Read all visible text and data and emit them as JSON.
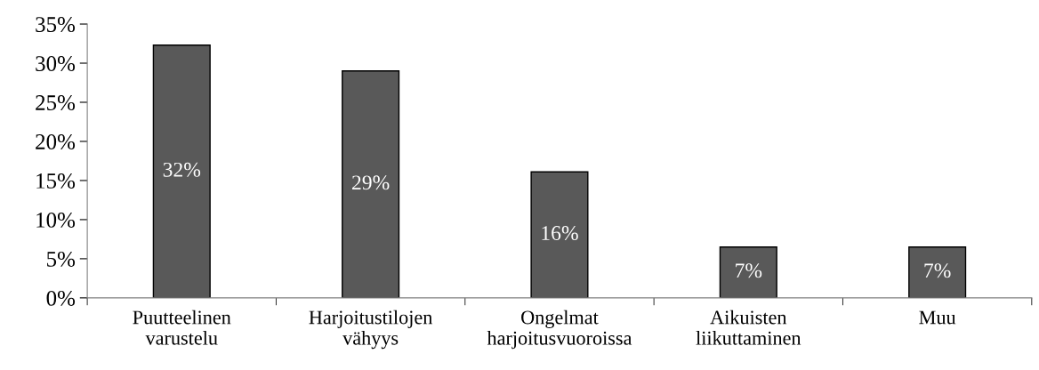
{
  "chart_data": {
    "type": "bar",
    "categories": [
      "Puutteelinen\nvarustelu",
      "Harjoitustilojen\nvähyys",
      "Ongelmat\nharjoitusvuoroissa",
      "Aikuisten\nliikuttaminen",
      "Muu"
    ],
    "values": [
      32.3,
      29.0,
      16.1,
      6.5,
      6.5
    ],
    "value_labels": [
      "32%",
      "29%",
      "16%",
      "7%",
      "7%"
    ],
    "color": "#595959",
    "ylim": [
      0,
      35
    ],
    "yticks": [
      {
        "value": 0,
        "label": "0%"
      },
      {
        "value": 5,
        "label": "5%"
      },
      {
        "value": 10,
        "label": "10%"
      },
      {
        "value": 15,
        "label": "15%"
      },
      {
        "value": 20,
        "label": "20%"
      },
      {
        "value": 25,
        "label": "25%"
      },
      {
        "value": 30,
        "label": "30%"
      },
      {
        "value": 35,
        "label": "35%"
      }
    ],
    "grid": false,
    "legend": false
  }
}
